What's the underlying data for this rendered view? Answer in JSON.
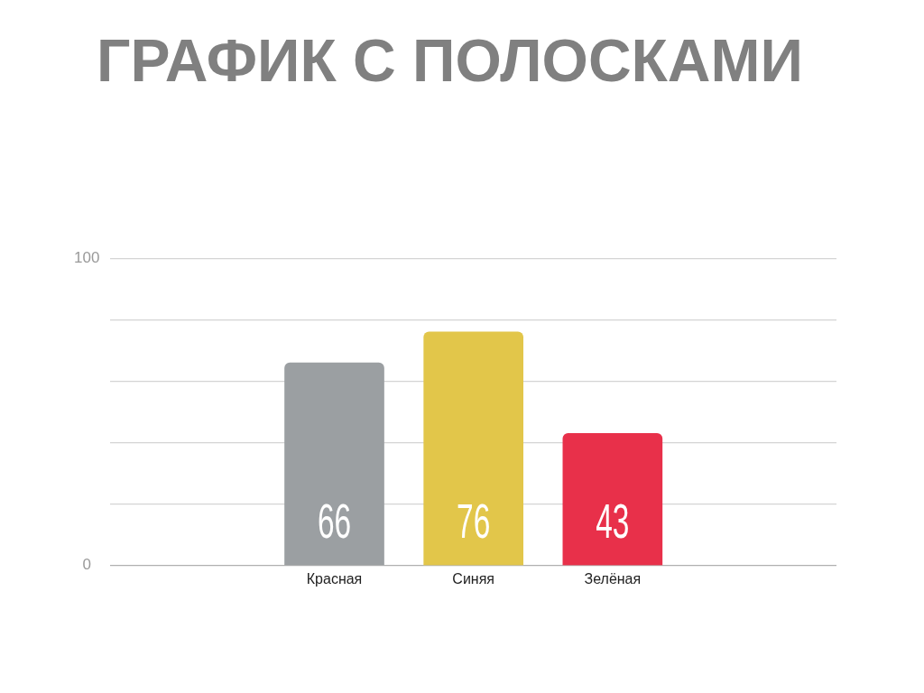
{
  "chart_data": {
    "type": "bar",
    "title": "ГРАФИК С ПОЛОСКАМИ",
    "categories": [
      "Красная",
      "Синяя",
      "Зелёная"
    ],
    "values": [
      66,
      76,
      43
    ],
    "colors": [
      "#9b9fa2",
      "#e2c64a",
      "#e8304a"
    ],
    "ylim": [
      0,
      100
    ],
    "yticks": [
      0,
      {
        "value": 20,
        "label": null
      },
      {
        "value": 40,
        "label": null
      },
      {
        "value": 60,
        "label": null
      },
      {
        "value": 80,
        "label": null
      },
      100
    ],
    "grid": "y",
    "legend": false,
    "data_labels": true
  }
}
